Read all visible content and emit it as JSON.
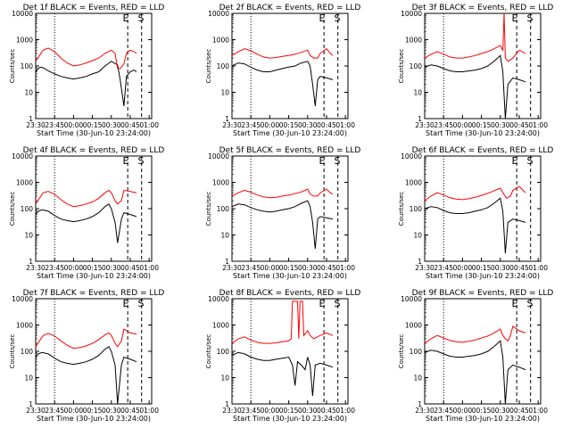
{
  "chart_data": [
    {
      "type": "line",
      "title": "Det 1f BLACK = Events, RED = LLD",
      "xlabel": "Start Time (30-Jun-10 23:24:00)",
      "ylabel": "Counts/sec",
      "xticks": [
        "23:30",
        "23:45",
        "00:00",
        "00:15",
        "00:30",
        "00:45",
        "01:00"
      ],
      "yticks": [
        "1",
        "10",
        "100",
        "1000",
        "10000"
      ],
      "ylim": [
        1,
        10000
      ],
      "yscale": "log",
      "markers": [
        "E",
        "S"
      ],
      "series": [
        {
          "name": "BLACK = Events",
          "color": "#000000",
          "x_minutes": [
            0,
            2,
            4,
            6,
            8,
            10,
            15,
            20,
            25,
            30,
            35,
            40,
            45,
            50,
            55,
            60,
            65,
            67,
            70,
            72,
            75,
            78,
            80
          ],
          "values": [
            60,
            80,
            90,
            85,
            75,
            65,
            50,
            40,
            35,
            32,
            35,
            40,
            50,
            60,
            100,
            150,
            110,
            30,
            3,
            40,
            60,
            70,
            60
          ]
        },
        {
          "name": "RED = LLD",
          "color": "#ff0000",
          "x_minutes": [
            0,
            3,
            6,
            10,
            15,
            20,
            25,
            30,
            35,
            40,
            45,
            50,
            55,
            60,
            63,
            65,
            67,
            70,
            72,
            75,
            78,
            80
          ],
          "values": [
            150,
            250,
            400,
            480,
            350,
            200,
            130,
            100,
            110,
            130,
            160,
            200,
            300,
            400,
            300,
            80,
            80,
            120,
            300,
            400,
            350,
            300
          ]
        }
      ]
    },
    {
      "type": "line",
      "title": "Det 2f BLACK = Events, RED = LLD",
      "xlabel": "Start Time (30-Jun-10 23:24:00)",
      "ylabel": "Counts/sec",
      "xticks": [
        "23:30",
        "23:45",
        "00:00",
        "00:15",
        "00:30",
        "00:45",
        "01:00"
      ],
      "yticks": [
        "1",
        "10",
        "100",
        "1000",
        "10000"
      ],
      "ylim": [
        1,
        10000
      ],
      "yscale": "log",
      "markers": [
        "E",
        "S"
      ],
      "series": [
        {
          "name": "BLACK = Events",
          "color": "#000000",
          "x_minutes": [
            0,
            5,
            10,
            15,
            20,
            25,
            30,
            35,
            40,
            45,
            50,
            55,
            60,
            62,
            64,
            66,
            68,
            70,
            75,
            80
          ],
          "values": [
            100,
            130,
            120,
            90,
            70,
            60,
            60,
            70,
            80,
            90,
            100,
            130,
            150,
            100,
            20,
            3,
            30,
            40,
            35,
            30
          ]
        },
        {
          "name": "RED = LLD",
          "color": "#ff0000",
          "x_minutes": [
            0,
            5,
            10,
            15,
            20,
            25,
            30,
            35,
            40,
            45,
            50,
            55,
            60,
            62,
            65,
            68,
            70,
            75,
            78,
            80
          ],
          "values": [
            250,
            350,
            450,
            380,
            280,
            220,
            200,
            210,
            230,
            250,
            280,
            330,
            400,
            250,
            200,
            200,
            300,
            450,
            300,
            250
          ]
        }
      ]
    },
    {
      "type": "line",
      "title": "Det 3f BLACK = Events, RED = LLD",
      "xlabel": "Start Time (30-Jun-10 23:24:00)",
      "ylabel": "Counts/sec",
      "xticks": [
        "23:30",
        "23:45",
        "00:00",
        "00:15",
        "00:30",
        "00:45",
        "01:00"
      ],
      "yticks": [
        "1",
        "10",
        "100",
        "1000",
        "10000"
      ],
      "ylim": [
        1,
        10000
      ],
      "yscale": "log",
      "markers": [
        "E",
        "S"
      ],
      "series": [
        {
          "name": "BLACK = Events",
          "color": "#000000",
          "x_minutes": [
            0,
            5,
            10,
            15,
            20,
            25,
            30,
            35,
            40,
            45,
            50,
            55,
            60,
            62,
            64,
            66,
            70,
            75,
            80
          ],
          "values": [
            90,
            110,
            100,
            80,
            65,
            60,
            60,
            65,
            70,
            80,
            100,
            150,
            250,
            60,
            1,
            20,
            35,
            30,
            25
          ]
        },
        {
          "name": "RED = LLD",
          "color": "#ff0000",
          "x_minutes": [
            0,
            5,
            10,
            15,
            20,
            25,
            30,
            35,
            40,
            45,
            50,
            55,
            60,
            62,
            63,
            64,
            66,
            70,
            75,
            80
          ],
          "values": [
            200,
            280,
            350,
            280,
            220,
            200,
            200,
            220,
            250,
            300,
            350,
            450,
            600,
            400,
            10000,
            200,
            150,
            200,
            400,
            300
          ]
        }
      ]
    },
    {
      "type": "line",
      "title": "Det 4f BLACK = Events, RED = LLD",
      "xlabel": "Start Time (30-Jun-10 23:24:00)",
      "ylabel": "Counts/sec",
      "xticks": [
        "23:30",
        "23:45",
        "00:00",
        "00:15",
        "00:30",
        "00:45",
        "01:00"
      ],
      "yticks": [
        "1",
        "10",
        "100",
        "1000",
        "10000"
      ],
      "ylim": [
        1,
        10000
      ],
      "yscale": "log",
      "markers": [
        "E",
        "S"
      ],
      "series": [
        {
          "name": "BLACK = Events",
          "color": "#000000",
          "x_minutes": [
            0,
            2,
            5,
            10,
            15,
            20,
            25,
            30,
            35,
            40,
            45,
            50,
            55,
            58,
            60,
            63,
            65,
            68,
            70,
            75,
            80
          ],
          "values": [
            60,
            80,
            90,
            80,
            55,
            40,
            35,
            32,
            35,
            40,
            50,
            70,
            120,
            150,
            100,
            30,
            5,
            40,
            70,
            60,
            50
          ]
        },
        {
          "name": "RED = LLD",
          "color": "#ff0000",
          "x_minutes": [
            0,
            3,
            6,
            10,
            15,
            20,
            25,
            30,
            35,
            40,
            45,
            50,
            55,
            58,
            60,
            63,
            65,
            68,
            70,
            75,
            80
          ],
          "values": [
            150,
            250,
            400,
            450,
            350,
            220,
            150,
            120,
            130,
            150,
            180,
            250,
            400,
            500,
            400,
            200,
            150,
            200,
            500,
            450,
            400
          ]
        }
      ]
    },
    {
      "type": "line",
      "title": "Det 5f BLACK = Events, RED = LLD",
      "xlabel": "Start Time (30-Jun-10 23:24:00)",
      "ylabel": "Counts/sec",
      "xticks": [
        "23:30",
        "23:45",
        "00:00",
        "00:15",
        "00:30",
        "00:45",
        "01:00"
      ],
      "yticks": [
        "1",
        "10",
        "100",
        "1000",
        "10000"
      ],
      "ylim": [
        1,
        10000
      ],
      "yscale": "log",
      "markers": [
        "E",
        "S"
      ],
      "series": [
        {
          "name": "BLACK = Events",
          "color": "#000000",
          "x_minutes": [
            0,
            5,
            10,
            15,
            20,
            25,
            30,
            35,
            40,
            45,
            50,
            55,
            60,
            62,
            64,
            66,
            68,
            70,
            75,
            80
          ],
          "values": [
            120,
            150,
            140,
            110,
            90,
            80,
            75,
            80,
            90,
            100,
            120,
            160,
            200,
            120,
            30,
            3,
            40,
            50,
            45,
            40
          ]
        },
        {
          "name": "RED = LLD",
          "color": "#ff0000",
          "x_minutes": [
            0,
            5,
            10,
            15,
            20,
            25,
            30,
            35,
            40,
            45,
            50,
            55,
            60,
            62,
            65,
            68,
            70,
            75,
            78,
            80
          ],
          "values": [
            300,
            400,
            500,
            420,
            330,
            280,
            260,
            270,
            300,
            330,
            370,
            430,
            550,
            350,
            300,
            300,
            400,
            550,
            400,
            350
          ]
        }
      ]
    },
    {
      "type": "line",
      "title": "Det 6f BLACK = Events, RED = LLD",
      "xlabel": "Start Time (30-Jun-10 23:24:00)",
      "ylabel": "Counts/sec",
      "xticks": [
        "23:30",
        "23:45",
        "00:00",
        "00:15",
        "00:30",
        "00:45",
        "01:00"
      ],
      "yticks": [
        "1",
        "10",
        "100",
        "1000",
        "10000"
      ],
      "ylim": [
        1,
        10000
      ],
      "yscale": "log",
      "markers": [
        "E",
        "S"
      ],
      "series": [
        {
          "name": "BLACK = Events",
          "color": "#000000",
          "x_minutes": [
            0,
            5,
            10,
            15,
            20,
            25,
            30,
            35,
            40,
            45,
            50,
            55,
            60,
            62,
            64,
            66,
            70,
            75,
            80
          ],
          "values": [
            100,
            120,
            110,
            85,
            70,
            65,
            65,
            70,
            80,
            90,
            110,
            160,
            250,
            80,
            2,
            30,
            40,
            35,
            30
          ]
        },
        {
          "name": "RED = LLD",
          "color": "#ff0000",
          "x_minutes": [
            0,
            5,
            10,
            15,
            20,
            25,
            30,
            35,
            40,
            45,
            50,
            55,
            60,
            62,
            65,
            68,
            70,
            75,
            78,
            80
          ],
          "values": [
            200,
            300,
            400,
            330,
            260,
            230,
            220,
            240,
            270,
            320,
            380,
            480,
            600,
            400,
            250,
            300,
            500,
            700,
            500,
            400
          ]
        }
      ]
    },
    {
      "type": "line",
      "title": "Det 7f BLACK = Events, RED = LLD",
      "xlabel": "Start Time (30-Jun-10 23:24:00)",
      "ylabel": "Counts/sec",
      "xticks": [
        "23:30",
        "23:45",
        "00:00",
        "00:15",
        "00:30",
        "00:45",
        "01:00"
      ],
      "yticks": [
        "1",
        "10",
        "100",
        "1000",
        "10000"
      ],
      "ylim": [
        1,
        10000
      ],
      "yscale": "log",
      "markers": [
        "E",
        "S"
      ],
      "series": [
        {
          "name": "BLACK = Events",
          "color": "#000000",
          "x_minutes": [
            0,
            2,
            5,
            10,
            15,
            20,
            25,
            30,
            35,
            40,
            45,
            50,
            55,
            58,
            60,
            63,
            65,
            68,
            70,
            75,
            80
          ],
          "values": [
            60,
            80,
            90,
            80,
            55,
            40,
            35,
            32,
            35,
            40,
            50,
            70,
            120,
            150,
            100,
            30,
            1,
            30,
            60,
            50,
            40
          ]
        },
        {
          "name": "RED = LLD",
          "color": "#ff0000",
          "x_minutes": [
            0,
            3,
            6,
            10,
            15,
            20,
            25,
            30,
            35,
            40,
            45,
            50,
            55,
            58,
            60,
            63,
            65,
            68,
            70,
            75,
            80
          ],
          "values": [
            150,
            250,
            400,
            480,
            380,
            250,
            170,
            130,
            140,
            160,
            200,
            280,
            420,
            500,
            400,
            200,
            150,
            250,
            700,
            500,
            450
          ]
        }
      ]
    },
    {
      "type": "line",
      "title": "Det 8f BLACK = Events, RED = LLD",
      "xlabel": "Start Time (30-Jun-10 23:24:00)",
      "ylabel": "Counts/sec",
      "xticks": [
        "23:30",
        "23:45",
        "00:00",
        "00:15",
        "00:30",
        "00:45",
        "01:00"
      ],
      "yticks": [
        "1",
        "10",
        "100",
        "1000",
        "10000"
      ],
      "ylim": [
        1,
        10000
      ],
      "yscale": "log",
      "markers": [
        "E",
        "S"
      ],
      "series": [
        {
          "name": "BLACK = Events",
          "color": "#000000",
          "x_minutes": [
            0,
            5,
            10,
            15,
            20,
            25,
            30,
            35,
            40,
            45,
            48,
            50,
            52,
            55,
            58,
            60,
            62,
            64,
            66,
            70,
            75,
            80
          ],
          "values": [
            70,
            90,
            80,
            60,
            50,
            45,
            45,
            50,
            55,
            60,
            30,
            5,
            40,
            30,
            20,
            60,
            30,
            2,
            30,
            35,
            30,
            25
          ]
        },
        {
          "name": "RED = LLD",
          "color": "#ff0000",
          "x_minutes": [
            0,
            5,
            10,
            15,
            20,
            25,
            30,
            35,
            40,
            45,
            47,
            48,
            52,
            53,
            54,
            56,
            57,
            60,
            62,
            65,
            70,
            75,
            80
          ],
          "values": [
            200,
            300,
            350,
            270,
            220,
            200,
            200,
            210,
            230,
            250,
            300,
            8000,
            8000,
            300,
            8000,
            8000,
            400,
            600,
            400,
            300,
            400,
            500,
            400
          ]
        }
      ]
    },
    {
      "type": "line",
      "title": "Det 9f BLACK = Events, RED = LLD",
      "xlabel": "Start Time (30-Jun-10 23:24:00)",
      "ylabel": "Counts/sec",
      "xticks": [
        "23:30",
        "23:45",
        "00:00",
        "00:15",
        "00:30",
        "00:45",
        "01:00"
      ],
      "yticks": [
        "1",
        "10",
        "100",
        "1000",
        "10000"
      ],
      "ylim": [
        1,
        10000
      ],
      "yscale": "log",
      "markers": [
        "E",
        "S"
      ],
      "series": [
        {
          "name": "BLACK = Events",
          "color": "#000000",
          "x_minutes": [
            0,
            5,
            10,
            15,
            20,
            25,
            30,
            35,
            40,
            45,
            50,
            55,
            60,
            62,
            64,
            66,
            70,
            75,
            80
          ],
          "values": [
            90,
            110,
            100,
            80,
            65,
            60,
            60,
            65,
            70,
            80,
            100,
            150,
            250,
            60,
            1,
            20,
            30,
            25,
            20
          ]
        },
        {
          "name": "RED = LLD",
          "color": "#ff0000",
          "x_minutes": [
            0,
            5,
            10,
            15,
            20,
            25,
            30,
            35,
            40,
            45,
            50,
            55,
            60,
            62,
            64,
            66,
            68,
            70,
            75,
            80
          ],
          "values": [
            200,
            300,
            400,
            320,
            260,
            230,
            220,
            240,
            270,
            320,
            380,
            500,
            700,
            400,
            300,
            250,
            400,
            900,
            600,
            500
          ]
        }
      ]
    }
  ]
}
